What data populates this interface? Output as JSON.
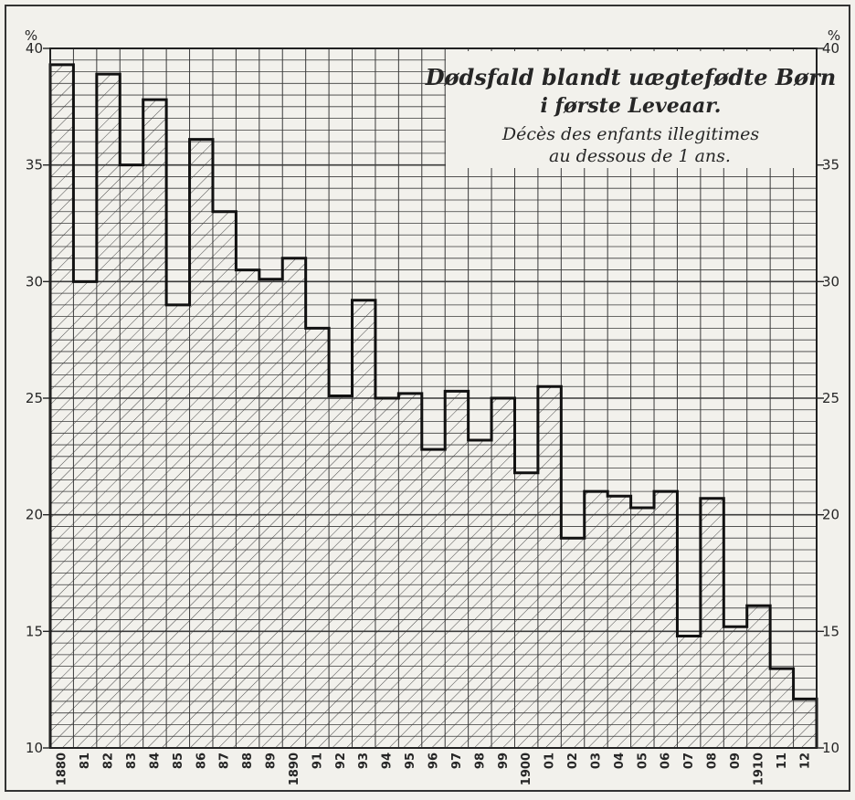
{
  "chart_data": {
    "type": "bar",
    "title": "Dødsfald blandt uægtefødte Børn i første Leveaar.",
    "subtitle": "Décès des enfants illegitimes au dessous de 1 ans.",
    "title_lines": [
      "Dødsfald blandt uægtefødte Børn",
      "i første Leveaar."
    ],
    "subtitle_lines": [
      "Décès des enfants illegitimes",
      "au dessous de 1 ans."
    ],
    "unit": "%",
    "xlabel": "",
    "ylabel": "",
    "ylim": [
      10,
      40
    ],
    "yticks": [
      10,
      15,
      20,
      25,
      30,
      35,
      40
    ],
    "ytick_labels": [
      "10",
      "15",
      "20",
      "25",
      "30",
      "35",
      "40"
    ],
    "grid": true,
    "categories": [
      "1880",
      "81",
      "82",
      "83",
      "84",
      "85",
      "86",
      "87",
      "88",
      "89",
      "1890",
      "91",
      "92",
      "93",
      "94",
      "95",
      "96",
      "97",
      "98",
      "99",
      "1900",
      "01",
      "02",
      "03",
      "04",
      "05",
      "06",
      "07",
      "08",
      "09",
      "1910",
      "11",
      "12"
    ],
    "values": [
      39.3,
      30.0,
      38.9,
      35.0,
      37.8,
      29.0,
      36.1,
      33.0,
      30.5,
      30.1,
      31.0,
      28.0,
      25.1,
      29.2,
      25.0,
      25.2,
      22.8,
      25.3,
      23.2,
      25.0,
      21.8,
      25.5,
      19.0,
      21.0,
      20.8,
      20.3,
      21.0,
      14.8,
      20.7,
      15.2,
      16.1,
      13.4,
      12.1
    ]
  }
}
